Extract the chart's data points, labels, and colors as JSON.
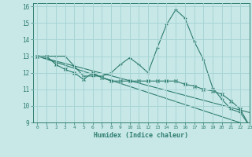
{
  "xlabel": "Humidex (Indice chaleur)",
  "bg_color": "#c8e8e8",
  "grid_color": "#a8d4d4",
  "line_color": "#2e7d6e",
  "xlim": [
    -0.5,
    23
  ],
  "ylim": [
    9,
    16.2
  ],
  "xticks": [
    0,
    1,
    2,
    3,
    4,
    5,
    6,
    7,
    8,
    9,
    10,
    11,
    12,
    13,
    14,
    15,
    16,
    17,
    18,
    19,
    20,
    21,
    22,
    23
  ],
  "yticks": [
    9,
    10,
    11,
    12,
    13,
    14,
    15,
    16
  ],
  "series": [
    {
      "x": [
        0,
        1,
        2,
        3,
        4,
        5,
        6,
        7,
        8,
        9,
        10,
        11,
        12,
        13,
        14,
        15,
        16,
        17,
        18,
        19,
        20,
        21,
        22,
        23
      ],
      "y": [
        13.0,
        13.0,
        13.0,
        13.0,
        12.4,
        11.8,
        11.8,
        11.8,
        12.0,
        12.5,
        12.9,
        12.5,
        12.0,
        13.5,
        14.9,
        15.8,
        15.3,
        13.9,
        12.8,
        11.1,
        10.4,
        9.8,
        9.6,
        8.8
      ],
      "marker": "+"
    },
    {
      "x": [
        0,
        1,
        2,
        3,
        4,
        5,
        6,
        7,
        8,
        9,
        10,
        11,
        12,
        13,
        14,
        15,
        16,
        17,
        18,
        19,
        20,
        21,
        22,
        23
      ],
      "y": [
        13.0,
        13.0,
        12.5,
        12.2,
        12.0,
        11.6,
        12.0,
        11.7,
        11.5,
        11.5,
        11.5,
        11.5,
        11.5,
        11.5,
        11.5,
        11.5,
        11.3,
        11.2,
        11.0,
        10.9,
        10.7,
        10.3,
        9.8,
        8.8
      ],
      "marker": "x"
    },
    {
      "x": [
        0,
        23
      ],
      "y": [
        13.0,
        8.8
      ],
      "marker": null
    },
    {
      "x": [
        0,
        23
      ],
      "y": [
        13.0,
        9.6
      ],
      "marker": null
    }
  ]
}
